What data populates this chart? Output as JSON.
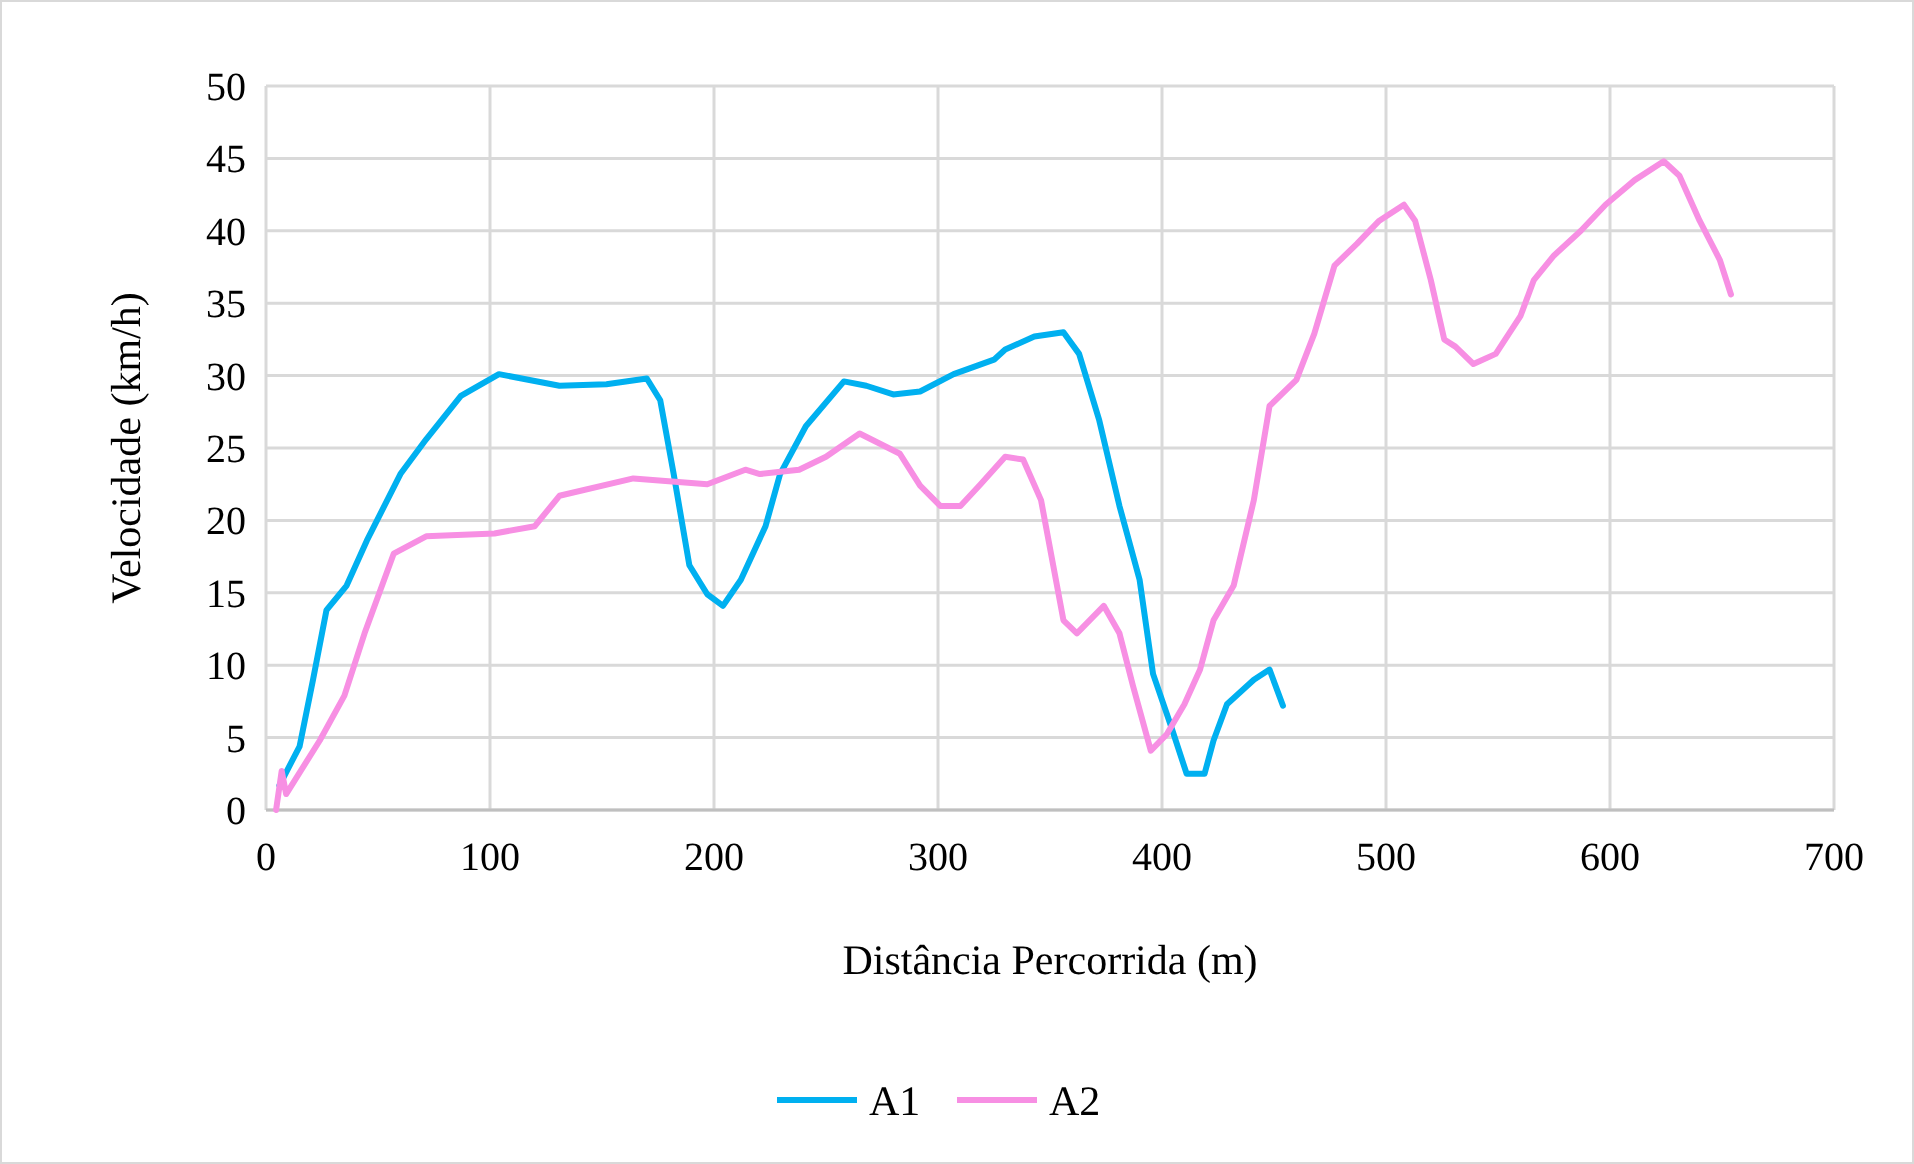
{
  "chart_data": {
    "type": "line",
    "xlabel": "Distância Percorrida (m)",
    "ylabel": "Velocidade (km/h)",
    "xlim": [
      0,
      700
    ],
    "xticks": [
      0,
      100,
      200,
      300,
      400,
      500,
      600,
      700
    ],
    "ylim": [
      0,
      50
    ],
    "yticks": [
      0,
      5,
      10,
      15,
      20,
      25,
      30,
      35,
      40,
      45,
      50
    ],
    "grid": true,
    "legend": "bottom",
    "line_style": "solid",
    "marker": "none",
    "series": [
      {
        "name": "A1",
        "color": "#00b0f0",
        "x": [
          6,
          15,
          21,
          27,
          36,
          45,
          60,
          71.5,
          87,
          104,
          131,
          152,
          170,
          176,
          182,
          189,
          197,
          204,
          212,
          223,
          229.5,
          241,
          258,
          268,
          280,
          292,
          307,
          325,
          330,
          343,
          356,
          363,
          372,
          381,
          390,
          396,
          404,
          411,
          419,
          423,
          429,
          441,
          448,
          454
        ],
        "values": [
          1.7,
          4.4,
          9,
          13.8,
          15.5,
          18.6,
          23.2,
          25.6,
          28.6,
          30.1,
          29.3,
          29.4,
          29.8,
          28.3,
          23.2,
          16.9,
          14.9,
          14.1,
          15.9,
          19.6,
          23.2,
          26.5,
          29.6,
          29.3,
          28.7,
          28.9,
          30.1,
          31.1,
          31.8,
          32.7,
          33,
          31.5,
          26.9,
          21,
          15.9,
          9.4,
          5.8,
          2.5,
          2.5,
          4.8,
          7.3,
          9,
          9.7,
          7.2
        ]
      },
      {
        "name": "A2",
        "color": "#f78fe3",
        "x": [
          4.5,
          7,
          9,
          24,
          35,
          44,
          57,
          71.5,
          102,
          120,
          131,
          164,
          197,
          214,
          220.5,
          238,
          250,
          265,
          283,
          292,
          301,
          310,
          319,
          330,
          338,
          346,
          356,
          362,
          374,
          381,
          387,
          395,
          402,
          410,
          417,
          423,
          432,
          441,
          448,
          460,
          468,
          477,
          487,
          497,
          508,
          513,
          520,
          526,
          531,
          539,
          549,
          560,
          566,
          575,
          587,
          598,
          611,
          624,
          631,
          640,
          649,
          654
        ],
        "values": [
          0,
          2.7,
          1.1,
          4.8,
          7.9,
          12.2,
          17.7,
          18.9,
          19.1,
          19.6,
          21.7,
          22.9,
          22.5,
          23.5,
          23.2,
          23.5,
          24.4,
          26,
          24.6,
          22.4,
          21,
          21,
          22.5,
          24.4,
          24.2,
          21.4,
          13.1,
          12.2,
          14.1,
          12.2,
          8.6,
          4.1,
          5.2,
          7.3,
          9.7,
          13.1,
          15.5,
          21.4,
          27.9,
          29.7,
          32.9,
          37.6,
          39.1,
          40.7,
          41.8,
          40.7,
          36.6,
          32.5,
          32,
          30.8,
          31.5,
          34.1,
          36.6,
          38.3,
          40,
          41.8,
          43.5,
          44.8,
          43.8,
          40.7,
          38,
          35.6
        ]
      }
    ]
  }
}
